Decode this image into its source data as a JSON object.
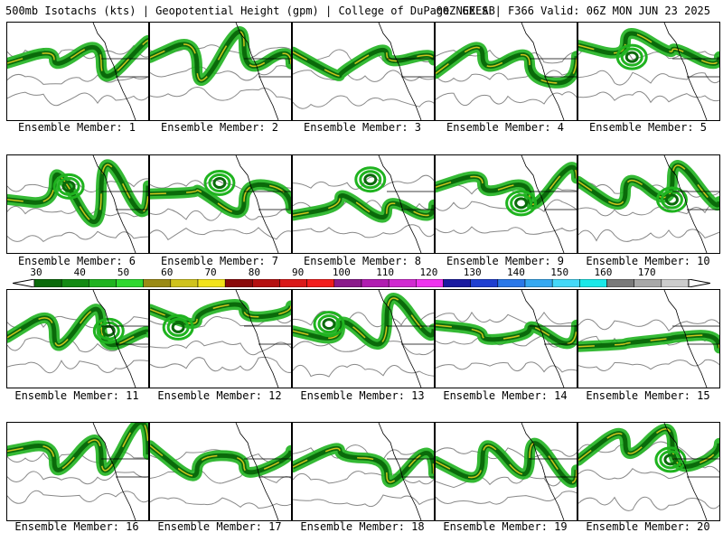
{
  "title": "500mb Isotachs (kts) | Geopotential Height (gpm) | College of DuPage NEXLAB",
  "title_right": "00Z GEFS | F366 Valid: 06Z MON JUN 23 2025",
  "panels": [
    {
      "label": "Ensemble Member: 1"
    },
    {
      "label": "Ensemble Member: 2"
    },
    {
      "label": "Ensemble Member: 3"
    },
    {
      "label": "Ensemble Member: 4"
    },
    {
      "label": "Ensemble Member: 5"
    },
    {
      "label": "Ensemble Member: 6"
    },
    {
      "label": "Ensemble Member: 7"
    },
    {
      "label": "Ensemble Member: 8"
    },
    {
      "label": "Ensemble Member: 9"
    },
    {
      "label": "Ensemble Member: 10"
    },
    {
      "label": "Ensemble Member: 11"
    },
    {
      "label": "Ensemble Member: 12"
    },
    {
      "label": "Ensemble Member: 13"
    },
    {
      "label": "Ensemble Member: 14"
    },
    {
      "label": "Ensemble Member: 15"
    },
    {
      "label": "Ensemble Member: 16"
    },
    {
      "label": "Ensemble Member: 17"
    },
    {
      "label": "Ensemble Member: 18"
    },
    {
      "label": "Ensemble Member: 19"
    },
    {
      "label": "Ensemble Member: 20"
    }
  ],
  "colorbar": {
    "labels": [
      "30",
      "40",
      "50",
      "60",
      "70",
      "80",
      "90",
      "100",
      "110",
      "120",
      "130",
      "140",
      "150",
      "160",
      "170"
    ],
    "colors": [
      "#0a6a0a",
      "#138a13",
      "#1fb31f",
      "#2ed82e",
      "#9a8a14",
      "#cfc21c",
      "#f2e21a",
      "#8a0a0a",
      "#b41010",
      "#d91919",
      "#f21c1c",
      "#8a1a8a",
      "#b01cb0",
      "#d02ad0",
      "#ee33ee",
      "#1a1aa0",
      "#1f3fd0",
      "#2a78e8",
      "#36a8f0",
      "#44d8f8",
      "#1ae8e8",
      "#7a7a7a",
      "#a8a8a8",
      "#cccccc"
    ]
  }
}
